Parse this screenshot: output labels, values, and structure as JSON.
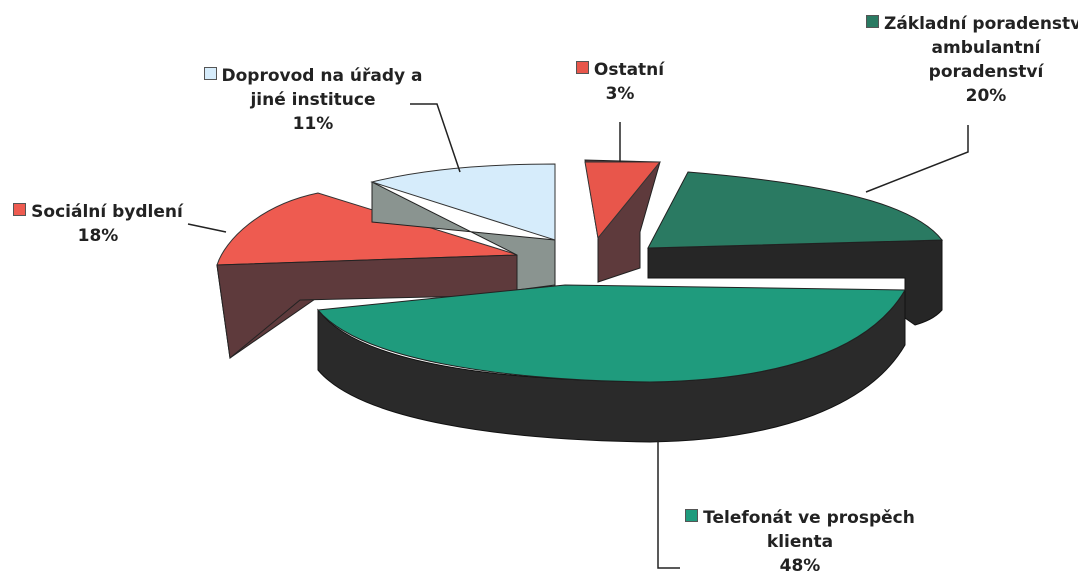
{
  "chart_data": {
    "type": "pie",
    "style": "3d-exploded",
    "legend": "inline-labels",
    "slices": [
      {
        "id": "zakladni",
        "label_lines": [
          "Základní poradenství-",
          "ambulantní",
          "poradenství"
        ],
        "value": 20,
        "value_label": "20%",
        "color": "#2a7a62"
      },
      {
        "id": "telefonat",
        "label_lines": [
          "Telefonát ve prospěch",
          "klienta"
        ],
        "value": 48,
        "value_label": "48%",
        "color": "#1f9b7d"
      },
      {
        "id": "socialni",
        "label_lines": [
          "Sociální bydlení"
        ],
        "value": 18,
        "value_label": "18%",
        "color": "#ee5b50"
      },
      {
        "id": "doprovod",
        "label_lines": [
          "Doprovod na úřady a",
          "jiné instituce"
        ],
        "value": 11,
        "value_label": "11%",
        "color": "#d6ecfb"
      },
      {
        "id": "ostatni",
        "label_lines": [
          "Ostatní"
        ],
        "value": 3,
        "value_label": "3%",
        "color": "#e8564b"
      }
    ]
  }
}
